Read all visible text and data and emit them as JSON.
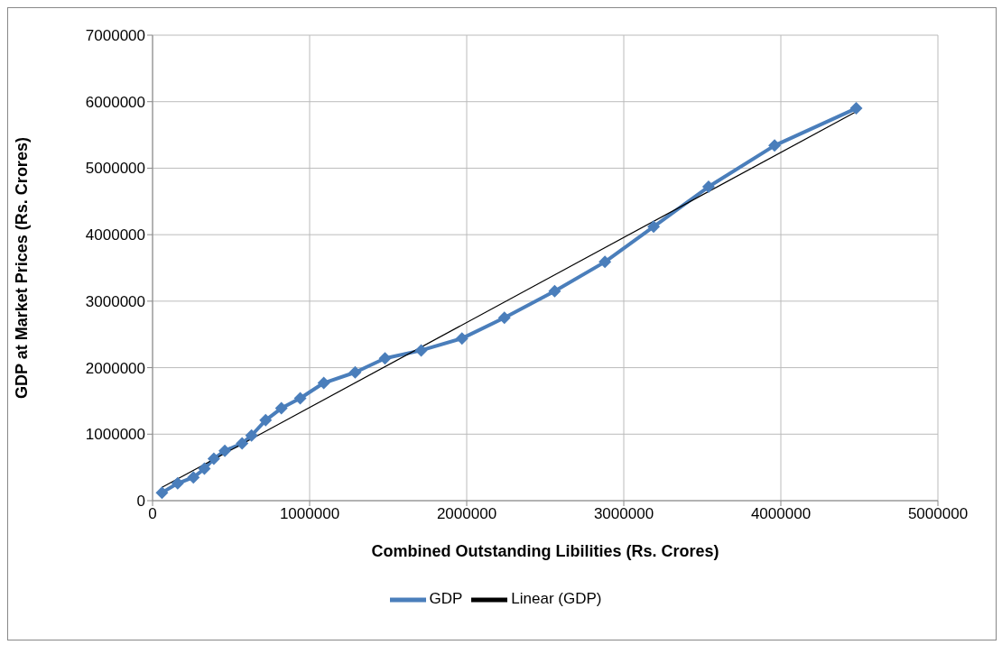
{
  "chart_data": {
    "type": "line",
    "xlabel": "Combined Outstanding Libilities (Rs. Crores)",
    "ylabel": "GDP at Market Prices (Rs. Crores)",
    "xlim": [
      0,
      5000000
    ],
    "xticks": [
      0,
      1000000,
      2000000,
      3000000,
      4000000,
      5000000
    ],
    "ylim": [
      0,
      7000000
    ],
    "yticks": [
      0,
      1000000,
      2000000,
      3000000,
      4000000,
      5000000,
      6000000,
      7000000
    ],
    "grid": true,
    "legend": "bottom",
    "series": [
      {
        "name": "GDP",
        "color": "#4a7ebb",
        "marker": "diamond",
        "x": [
          60000,
          160000,
          260000,
          330000,
          390000,
          460000,
          570000,
          630000,
          720000,
          820000,
          940000,
          1090000,
          1290000,
          1480000,
          1710000,
          1970000,
          2240000,
          2560000,
          2880000,
          3190000,
          3540000,
          3960000,
          4480000
        ],
        "values": [
          120000,
          260000,
          350000,
          480000,
          630000,
          750000,
          860000,
          980000,
          1210000,
          1390000,
          1540000,
          1770000,
          1930000,
          2140000,
          2260000,
          2440000,
          2750000,
          3150000,
          3590000,
          4120000,
          4720000,
          5340000,
          5900000
        ]
      },
      {
        "name": "Linear (GDP)",
        "color": "#000000",
        "marker": "none",
        "x": [
          60000,
          4480000
        ],
        "values": [
          200000,
          5850000
        ]
      }
    ]
  }
}
